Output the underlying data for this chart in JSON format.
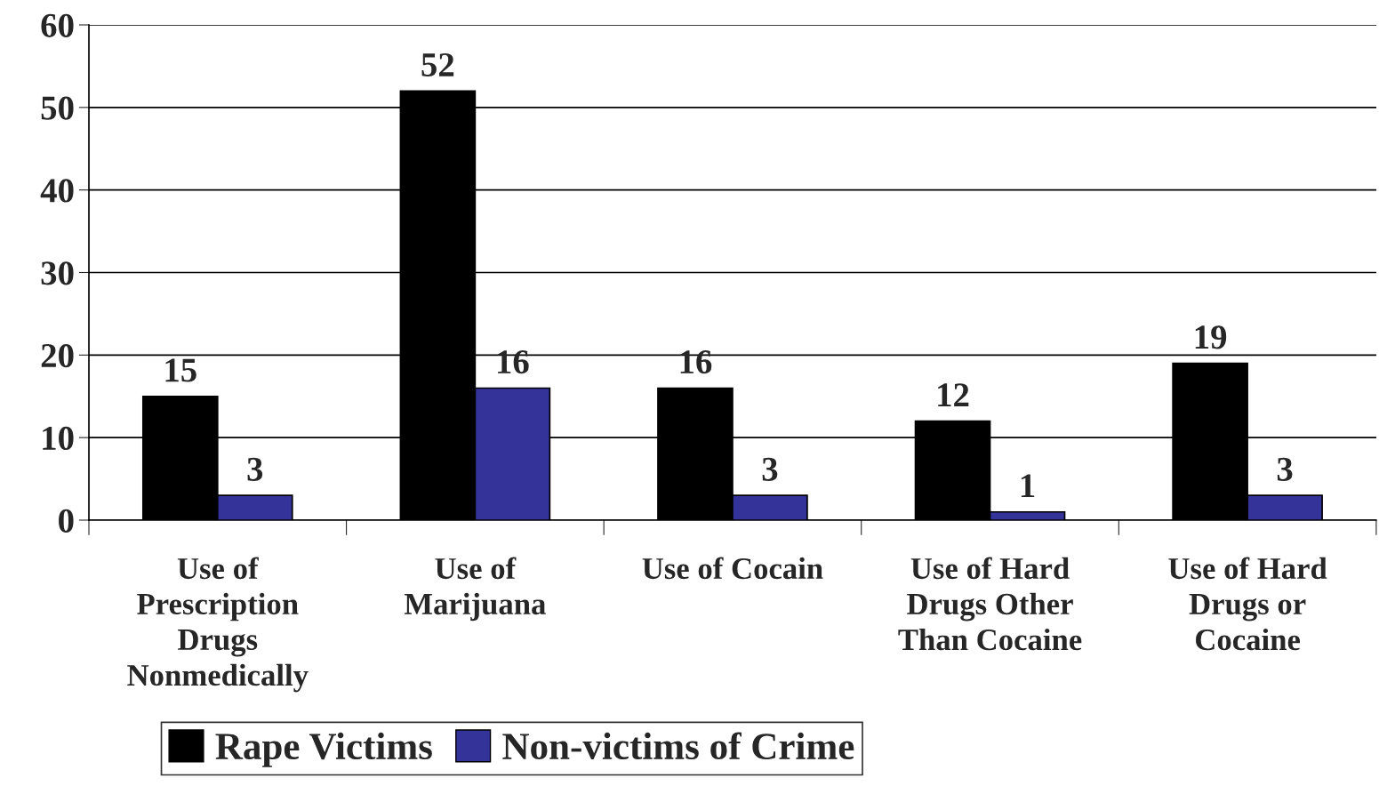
{
  "chart_data": {
    "type": "bar",
    "categories": [
      "Use of\nPrescription\nDrugs\nNonmedically",
      "Use of\nMarijuana",
      "Use of Cocain",
      "Use of Hard\nDrugs Other\nThan Cocaine",
      "Use of Hard\nDrugs or\nCocaine"
    ],
    "series": [
      {
        "name": "Rape Victims",
        "color": "#000000",
        "values": [
          15,
          52,
          16,
          12,
          19
        ]
      },
      {
        "name": "Non-victims of Crime",
        "color": "#333399",
        "values": [
          3,
          16,
          3,
          1,
          3
        ]
      }
    ],
    "ylim": [
      0,
      60
    ],
    "yticks": [
      0,
      10,
      20,
      30,
      40,
      50,
      60
    ],
    "grid": "y",
    "legend": "bottom",
    "data_labels": true
  }
}
